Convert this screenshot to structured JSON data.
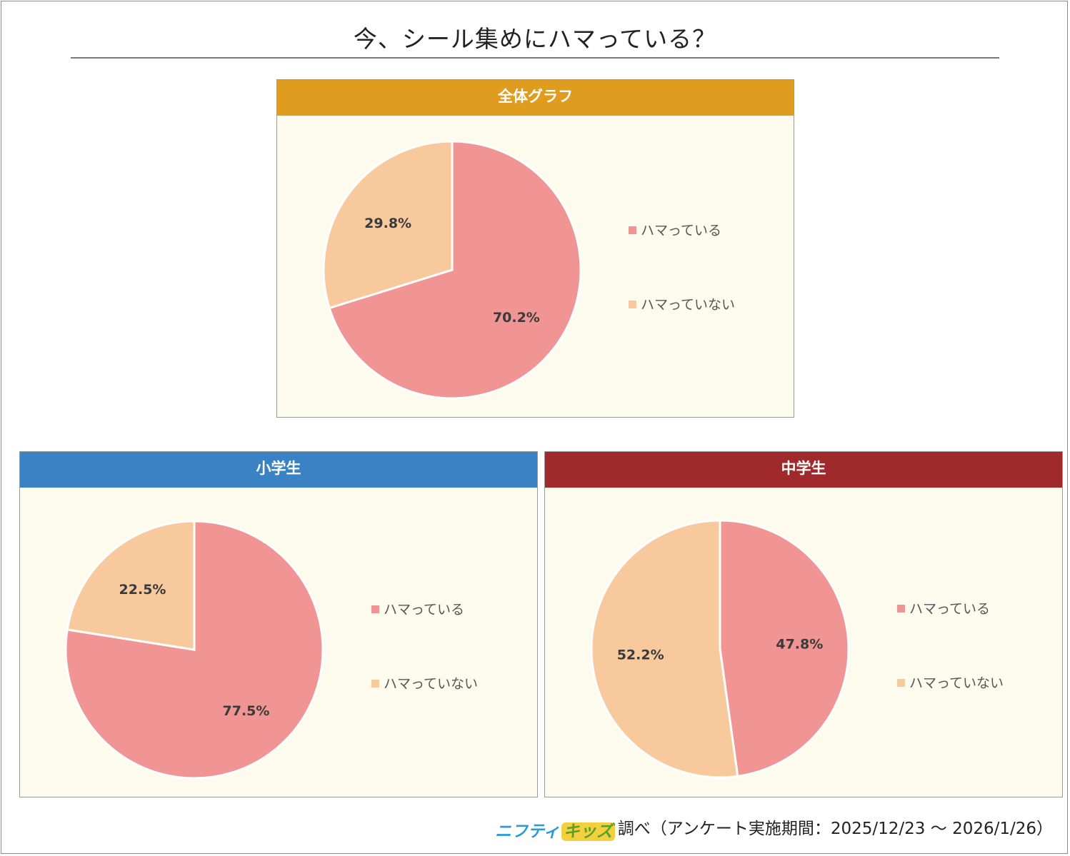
{
  "title": "今、シール集めにハマっている？",
  "colors": {
    "yes": "#f09494",
    "no": "#f7c99c",
    "header_total": "#e09c1e",
    "header_elementary": "#3b82c4",
    "header_junior": "#a0292b",
    "panel_bg": "#fdfbee"
  },
  "chart_data": [
    {
      "type": "pie",
      "title": "全体グラフ",
      "labels": [
        "ハマっている",
        "ハマっていない"
      ],
      "values": [
        70.2,
        29.8
      ],
      "data_labels": [
        "70.2%",
        "29.8%"
      ],
      "legend_position": "right"
    },
    {
      "type": "pie",
      "title": "小学生",
      "labels": [
        "ハマっている",
        "ハマっていない"
      ],
      "values": [
        77.5,
        22.5
      ],
      "data_labels": [
        "77.5%",
        "22.5%"
      ],
      "legend_position": "right"
    },
    {
      "type": "pie",
      "title": "中学生",
      "labels": [
        "ハマっている",
        "ハマっていない"
      ],
      "values": [
        47.8,
        52.2
      ],
      "data_labels": [
        "47.8%",
        "52.2%"
      ],
      "legend_position": "right"
    }
  ],
  "footer": {
    "logo_part1": "ニフティ",
    "logo_part2": "キッズ",
    "text": "調べ（アンケート実施期間：2025/12/23 ～ 2026/1/26）"
  }
}
